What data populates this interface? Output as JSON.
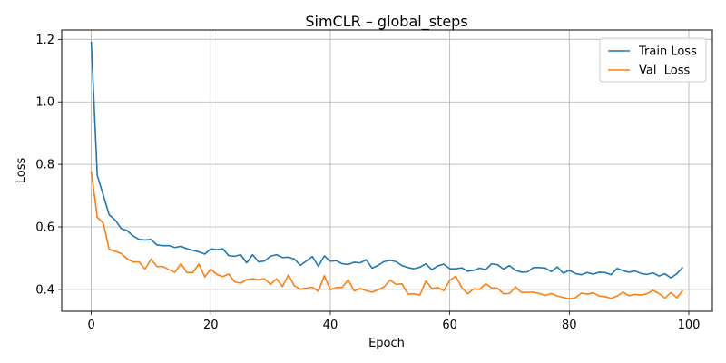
{
  "chart_data": {
    "type": "line",
    "title": "SimCLR – global_steps",
    "xlabel": "Epoch",
    "ylabel": "Loss",
    "xlim": [
      -4.95,
      103.95
    ],
    "ylim": [
      0.33,
      1.23
    ],
    "xticks": [
      0,
      20,
      40,
      60,
      80,
      100
    ],
    "yticks": [
      0.4,
      0.6,
      0.8,
      1.0,
      1.2
    ],
    "xtick_labels": [
      "0",
      "20",
      "40",
      "60",
      "80",
      "100"
    ],
    "ytick_labels": [
      "0.4",
      "0.6",
      "0.8",
      "1.0",
      "1.2"
    ],
    "grid": true,
    "legend_position": "top-right",
    "x": [
      0,
      1,
      2,
      3,
      4,
      5,
      6,
      7,
      8,
      9,
      10,
      11,
      12,
      13,
      14,
      15,
      16,
      17,
      18,
      19,
      20,
      21,
      22,
      23,
      24,
      25,
      26,
      27,
      28,
      29,
      30,
      31,
      32,
      33,
      34,
      35,
      36,
      37,
      38,
      39,
      40,
      41,
      42,
      43,
      44,
      45,
      46,
      47,
      48,
      49,
      50,
      51,
      52,
      53,
      54,
      55,
      56,
      57,
      58,
      59,
      60,
      61,
      62,
      63,
      64,
      65,
      66,
      67,
      68,
      69,
      70,
      71,
      72,
      73,
      74,
      75,
      76,
      77,
      78,
      79,
      80,
      81,
      82,
      83,
      84,
      85,
      86,
      87,
      88,
      89,
      90,
      91,
      92,
      93,
      94,
      95,
      96,
      97,
      98,
      99
    ],
    "series": [
      {
        "name": "Train Loss",
        "color": "#1f77b4",
        "values": [
          1.193,
          0.765,
          0.702,
          0.638,
          0.622,
          0.595,
          0.588,
          0.571,
          0.56,
          0.558,
          0.56,
          0.542,
          0.54,
          0.54,
          0.534,
          0.538,
          0.53,
          0.525,
          0.52,
          0.513,
          0.53,
          0.527,
          0.53,
          0.508,
          0.506,
          0.511,
          0.485,
          0.511,
          0.488,
          0.491,
          0.506,
          0.511,
          0.502,
          0.503,
          0.497,
          0.477,
          0.491,
          0.505,
          0.474,
          0.507,
          0.49,
          0.492,
          0.482,
          0.48,
          0.487,
          0.485,
          0.495,
          0.468,
          0.477,
          0.489,
          0.493,
          0.489,
          0.476,
          0.47,
          0.466,
          0.471,
          0.482,
          0.463,
          0.475,
          0.481,
          0.466,
          0.466,
          0.469,
          0.458,
          0.461,
          0.468,
          0.463,
          0.482,
          0.479,
          0.465,
          0.476,
          0.461,
          0.455,
          0.456,
          0.47,
          0.47,
          0.468,
          0.457,
          0.472,
          0.452,
          0.461,
          0.451,
          0.447,
          0.454,
          0.449,
          0.455,
          0.454,
          0.447,
          0.467,
          0.46,
          0.455,
          0.459,
          0.451,
          0.448,
          0.453,
          0.443,
          0.45,
          0.437,
          0.45,
          0.471
        ]
      },
      {
        "name": "Val  Loss",
        "color": "#ff7f0e",
        "values": [
          0.778,
          0.631,
          0.612,
          0.528,
          0.522,
          0.515,
          0.498,
          0.488,
          0.488,
          0.465,
          0.497,
          0.473,
          0.473,
          0.463,
          0.455,
          0.483,
          0.454,
          0.454,
          0.481,
          0.44,
          0.465,
          0.448,
          0.441,
          0.449,
          0.424,
          0.42,
          0.431,
          0.434,
          0.431,
          0.434,
          0.416,
          0.434,
          0.409,
          0.446,
          0.411,
          0.401,
          0.404,
          0.407,
          0.394,
          0.444,
          0.399,
          0.406,
          0.406,
          0.431,
          0.395,
          0.403,
          0.396,
          0.391,
          0.399,
          0.408,
          0.43,
          0.416,
          0.418,
          0.385,
          0.386,
          0.382,
          0.427,
          0.403,
          0.406,
          0.396,
          0.429,
          0.442,
          0.406,
          0.386,
          0.402,
          0.4,
          0.418,
          0.405,
          0.404,
          0.386,
          0.387,
          0.408,
          0.39,
          0.391,
          0.391,
          0.387,
          0.381,
          0.387,
          0.379,
          0.374,
          0.37,
          0.373,
          0.388,
          0.385,
          0.389,
          0.379,
          0.377,
          0.371,
          0.379,
          0.391,
          0.38,
          0.384,
          0.382,
          0.386,
          0.397,
          0.387,
          0.372,
          0.39,
          0.373,
          0.397
        ]
      }
    ]
  }
}
